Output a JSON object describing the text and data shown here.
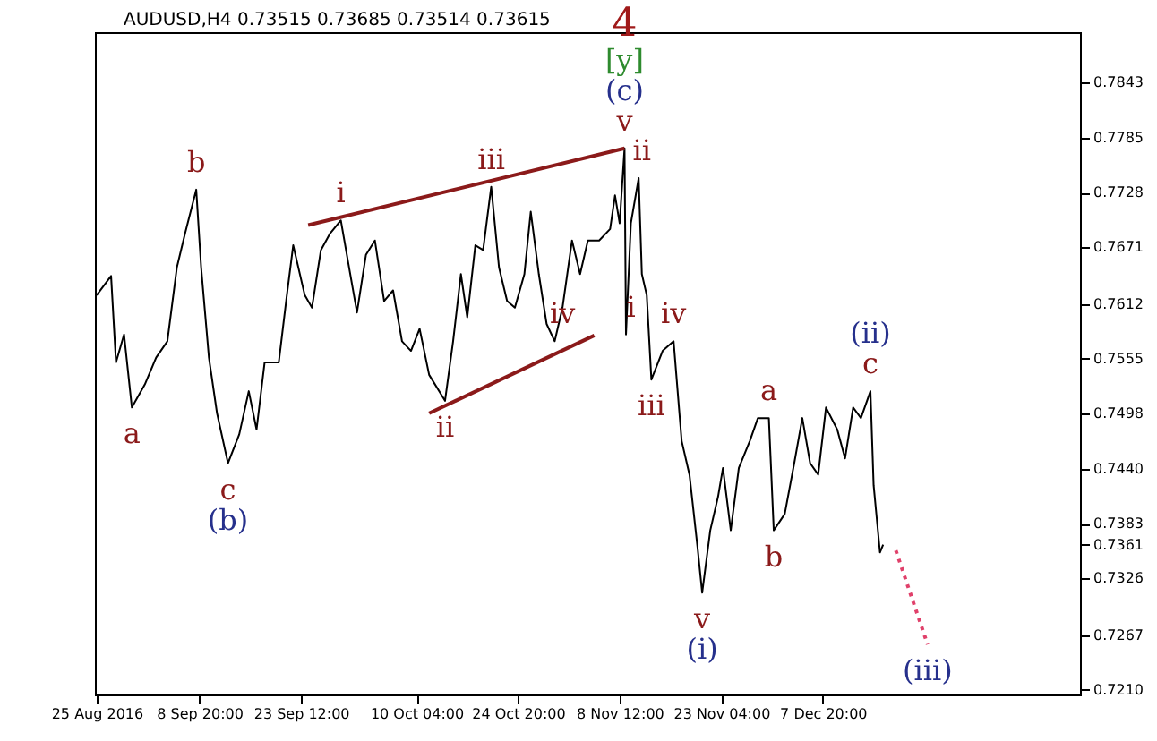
{
  "chart_data": {
    "type": "line",
    "title": "AUDUSD,H4 0.73515 0.73685 0.73514 0.73615",
    "xlim": [
      "2016-08-24T18:00",
      "2017-01-13T23:00"
    ],
    "xticks": [
      {
        "value": "2016-08-25T00:00",
        "label": "25 Aug 2016"
      },
      {
        "value": "2016-09-08T20:00",
        "label": "8 Sep 20:00"
      },
      {
        "value": "2016-09-23T12:00",
        "label": "23 Sep 12:00"
      },
      {
        "value": "2016-10-10T04:00",
        "label": "10 Oct 04:00"
      },
      {
        "value": "2016-10-24T20:00",
        "label": "24 Oct 20:00"
      },
      {
        "value": "2016-11-08T12:00",
        "label": "8 Nov 12:00"
      },
      {
        "value": "2016-11-23T04:00",
        "label": "23 Nov 04:00"
      },
      {
        "value": "2016-12-07T20:00",
        "label": "7 Dec 20:00"
      }
    ],
    "ylim": [
      0.7205,
      0.7895
    ],
    "yticks": [
      {
        "value": 0.721,
        "label": "0.7210"
      },
      {
        "value": 0.7267,
        "label": "0.7267"
      },
      {
        "value": 0.7326,
        "label": "0.7326"
      },
      {
        "value": 0.7383,
        "label": "0.7383"
      },
      {
        "value": 0.744,
        "label": "0.7440"
      },
      {
        "value": 0.7498,
        "label": "0.7498"
      },
      {
        "value": 0.7555,
        "label": "0.7555"
      },
      {
        "value": 0.7612,
        "label": "0.7612"
      },
      {
        "value": 0.7671,
        "label": "0.7671"
      },
      {
        "value": 0.7728,
        "label": "0.7728"
      },
      {
        "value": 0.7785,
        "label": "0.7785"
      },
      {
        "value": 0.7843,
        "label": "0.7843"
      },
      {
        "value": 0.7361,
        "label": "0.7361"
      }
    ],
    "grid": false,
    "marker": "none",
    "series": [
      {
        "color": "#000000",
        "line_style": "solid",
        "x": [
          "2016-08-25T00:00",
          "2016-08-27T02:00",
          "2016-08-27T19:00",
          "2016-08-28T23:00",
          "2016-08-30T02:00",
          "2016-08-31T23:00",
          "2016-09-02T14:00",
          "2016-09-04T05:00",
          "2016-09-05T14:00",
          "2016-09-06T18:00",
          "2016-09-08T09:00",
          "2016-09-09T02:00",
          "2016-09-10T05:00",
          "2016-09-11T09:00",
          "2016-09-12T23:00",
          "2016-09-14T14:00",
          "2016-09-15T23:00",
          "2016-09-17T02:00",
          "2016-09-18T06:00",
          "2016-09-20T07:00",
          "2016-09-21T11:00",
          "2016-09-22T09:00",
          "2016-09-24T01:00",
          "2016-09-25T02:00",
          "2016-09-26T09:00",
          "2016-09-27T16:00",
          "2016-09-29T06:00",
          "2016-09-30T07:00",
          "2016-10-01T14:00",
          "2016-10-02T21:00",
          "2016-10-04T04:00",
          "2016-10-05T12:00",
          "2016-10-06T19:00",
          "2016-10-08T02:00",
          "2016-10-09T09:00",
          "2016-10-10T15:00",
          "2016-10-12T00:00",
          "2016-10-14T07:00",
          "2016-10-15T11:00",
          "2016-10-16T14:00",
          "2016-10-17T12:00",
          "2016-10-18T16:00",
          "2016-10-19T19:00",
          "2016-10-20T23:00",
          "2016-10-22T02:00",
          "2016-10-23T06:00",
          "2016-10-24T09:00",
          "2016-10-25T18:00",
          "2016-10-26T16:00",
          "2016-10-27T20:00",
          "2016-10-28T23:00",
          "2016-10-30T03:00",
          "2016-10-31T06:00",
          "2016-11-01T15:00",
          "2016-11-02T19:00",
          "2016-11-03T22:00",
          "2016-11-05T13:00",
          "2016-11-07T03:00",
          "2016-11-07T20:00",
          "2016-11-08T12:00",
          "2016-11-09T05:00",
          "2016-11-09T10:00",
          "2016-11-10T03:00",
          "2016-11-11T06:00",
          "2016-11-11T17:00",
          "2016-11-12T10:00",
          "2016-11-13T02:00",
          "2016-11-14T17:00",
          "2016-11-16T07:00",
          "2016-11-17T11:00",
          "2016-11-18T14:00",
          "2016-11-19T18:00",
          "2016-11-20T10:00",
          "2016-11-21T14:00",
          "2016-11-22T17:00",
          "2016-11-23T10:00",
          "2016-11-24T13:00",
          "2016-11-25T17:00",
          "2016-11-27T07:00",
          "2016-11-28T11:00",
          "2016-11-30T01:00",
          "2016-11-30T18:00",
          "2016-12-02T08:00",
          "2016-12-03T17:00",
          "2016-12-04T21:00",
          "2016-12-06T00:00",
          "2016-12-07T04:00",
          "2016-12-08T07:00",
          "2016-12-09T22:00",
          "2016-12-11T01:00",
          "2016-12-12T05:00",
          "2016-12-13T08:00",
          "2016-12-14T17:00",
          "2016-12-15T04:00",
          "2016-12-15T15:00",
          "2016-12-16T02:00",
          "2016-12-16T13:00"
        ],
        "values": [
          0.7621,
          0.7641,
          0.7551,
          0.758,
          0.7504,
          0.7528,
          0.7556,
          0.7573,
          0.765,
          0.7685,
          0.7731,
          0.765,
          0.7556,
          0.7498,
          0.7446,
          0.7476,
          0.7521,
          0.7481,
          0.7551,
          0.7551,
          0.7621,
          0.7673,
          0.7621,
          0.7608,
          0.7668,
          0.7685,
          0.7699,
          0.7656,
          0.7603,
          0.7663,
          0.7678,
          0.7615,
          0.7626,
          0.7573,
          0.7563,
          0.7586,
          0.7538,
          0.7511,
          0.7573,
          0.7643,
          0.7598,
          0.7673,
          0.7668,
          0.7734,
          0.765,
          0.7615,
          0.7608,
          0.7643,
          0.7708,
          0.7643,
          0.7591,
          0.7573,
          0.7608,
          0.7678,
          0.7643,
          0.7678,
          0.7678,
          0.769,
          0.7725,
          0.7696,
          0.7774,
          0.758,
          0.7696,
          0.7743,
          0.7643,
          0.7621,
          0.7533,
          0.7563,
          0.7573,
          0.7469,
          0.7434,
          0.7358,
          0.7311,
          0.7376,
          0.7411,
          0.7441,
          0.7376,
          0.7441,
          0.7469,
          0.7493,
          0.7493,
          0.7376,
          0.7393,
          0.7446,
          0.7493,
          0.7446,
          0.7434,
          0.7504,
          0.7481,
          0.7451,
          0.7504,
          0.7493,
          0.7521,
          0.7423,
          0.7388,
          0.7353,
          0.7361
        ]
      },
      {
        "type": "line",
        "color": "#8b1a1a",
        "line_style": "solid",
        "x": [
          "2016-09-24T13:00",
          "2016-11-09T05:00"
        ],
        "values": [
          0.7694,
          0.7774
        ]
      },
      {
        "type": "line",
        "color": "#8b1a1a",
        "line_style": "solid",
        "x": [
          "2016-10-12T00:00",
          "2016-11-04T20:00"
        ],
        "values": [
          0.7498,
          0.7579
        ]
      },
      {
        "type": "line",
        "color": "#e0406a",
        "line_style": "dotted",
        "x": [
          "2016-12-18T09:00",
          "2016-12-22T23:00"
        ],
        "values": [
          0.7355,
          0.7257
        ]
      }
    ],
    "annotations": [
      {
        "text": "a",
        "x": "2016-08-30T02:00",
        "y": 0.7504
      },
      {
        "text": "b",
        "x": "2016-09-08T09:00",
        "y": 0.7731
      },
      {
        "text": "c",
        "x": "2016-09-12T23:00",
        "y": 0.7446
      },
      {
        "text": "(b)",
        "x": "2016-09-12T23:00",
        "y": 0.7446
      },
      {
        "text": "i",
        "x": "2016-09-29T06:00",
        "y": 0.7699
      },
      {
        "text": "ii",
        "x": "2016-10-14T07:00",
        "y": 0.7511
      },
      {
        "text": "iii",
        "x": "2016-10-20T23:00",
        "y": 0.7734
      },
      {
        "text": "iv",
        "x": "2016-10-31T06:00",
        "y": 0.7573
      },
      {
        "text": "v",
        "x": "2016-11-09T05:00",
        "y": 0.7774
      },
      {
        "text": "(c)",
        "x": "2016-11-09T05:00",
        "y": 0.7774
      },
      {
        "text": "[y]",
        "x": "2016-11-09T05:00",
        "y": 0.7774
      },
      {
        "text": "4",
        "x": "2016-11-09T05:00",
        "y": 0.7774
      },
      {
        "text": "i",
        "x": "2016-11-10T03:00",
        "y": 0.758
      },
      {
        "text": "ii",
        "x": "2016-11-11T17:00",
        "y": 0.7743
      },
      {
        "text": "iii",
        "x": "2016-11-13T02:00",
        "y": 0.7533
      },
      {
        "text": "iv",
        "x": "2016-11-16T07:00",
        "y": 0.7573
      },
      {
        "text": "v",
        "x": "2016-11-20T10:00",
        "y": 0.7311
      },
      {
        "text": "(i)",
        "x": "2016-11-20T10:00",
        "y": 0.7311
      },
      {
        "text": "a",
        "x": "2016-11-30T01:00",
        "y": 0.7493
      },
      {
        "text": "b",
        "x": "2016-11-30T18:00",
        "y": 0.7376
      },
      {
        "text": "c",
        "x": "2016-12-14T17:00",
        "y": 0.7521
      },
      {
        "text": "(ii)",
        "x": "2016-12-14T17:00",
        "y": 0.7521
      },
      {
        "text": "(iii)",
        "x": "2016-12-22T23:00",
        "y": 0.7257
      }
    ]
  }
}
